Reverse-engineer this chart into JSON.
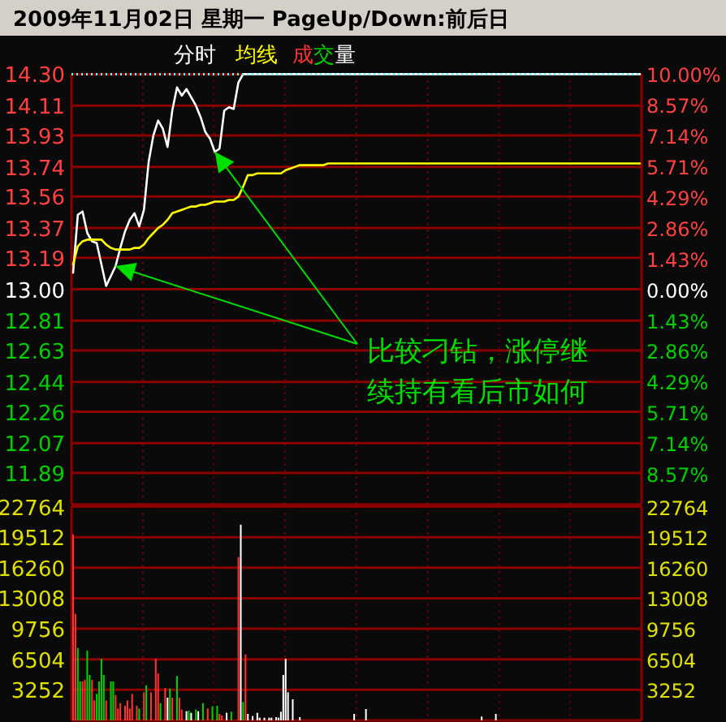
{
  "chart_data": [
    {
      "type": "line",
      "title": "2009年11月02日 星期一 PageUp/Down:前后日",
      "categories": [
        null,
        null,
        null,
        null,
        null,
        null,
        null,
        null,
        null,
        null,
        null,
        null,
        null,
        null,
        null,
        null,
        null,
        null,
        null,
        null,
        null,
        null,
        null,
        null,
        null,
        null,
        null,
        null,
        null,
        null,
        null,
        null,
        null,
        null,
        null,
        null,
        null,
        null,
        null,
        null,
        null,
        null,
        null,
        null,
        null,
        null,
        null,
        null,
        null,
        null,
        null,
        null,
        null,
        null,
        null,
        null,
        null,
        null,
        null,
        null,
        null,
        null,
        null,
        null,
        null,
        null,
        null,
        null,
        null,
        null,
        null,
        null,
        null,
        null,
        null,
        null,
        null,
        null,
        null,
        null,
        null,
        null,
        null,
        null,
        null,
        null,
        null,
        null,
        null,
        null,
        null,
        null,
        null,
        null,
        null,
        null,
        null,
        null,
        null,
        null,
        null,
        null,
        null,
        null,
        null,
        null,
        null,
        null,
        null,
        null,
        null,
        null,
        null,
        null,
        null,
        null,
        null,
        null,
        null,
        null,
        null
      ],
      "series": [
        {
          "name": "分时",
          "color": "#ffffff",
          "values": [
            13.1,
            13.45,
            13.47,
            13.34,
            13.29,
            13.28,
            13.15,
            13.02,
            13.08,
            13.14,
            13.25,
            13.35,
            13.42,
            13.46,
            13.38,
            13.48,
            13.77,
            13.93,
            14.02,
            13.97,
            13.86,
            14.08,
            14.22,
            14.17,
            14.21,
            14.16,
            14.11,
            14.04,
            13.95,
            13.91,
            13.83,
            13.85,
            14.08,
            14.1,
            14.09,
            14.25,
            14.3,
            14.3,
            14.3,
            14.3,
            14.3,
            14.3,
            14.3,
            14.3,
            14.3,
            14.3,
            14.3,
            14.3,
            14.3,
            14.3,
            14.3,
            14.3,
            14.3,
            14.3,
            14.3,
            14.3,
            14.3,
            14.3,
            14.3,
            14.3,
            14.3,
            14.3,
            14.3,
            14.3,
            14.3,
            14.3,
            14.3,
            14.3,
            14.3,
            14.3,
            14.3,
            14.3,
            14.3,
            14.3,
            14.3,
            14.3,
            14.3,
            14.3,
            14.3,
            14.3,
            14.3,
            14.3,
            14.3,
            14.3,
            14.3,
            14.3,
            14.3,
            14.3,
            14.3,
            14.3,
            14.3,
            14.3,
            14.3,
            14.3,
            14.3,
            14.3,
            14.3,
            14.3,
            14.3,
            14.3,
            14.3,
            14.3,
            14.3,
            14.3,
            14.3,
            14.3,
            14.3,
            14.3,
            14.3,
            14.3,
            14.3,
            14.3,
            14.3,
            14.3,
            14.3,
            14.3,
            14.3,
            14.3,
            14.3,
            14.3,
            14.3
          ]
        },
        {
          "name": "均线",
          "color": "#ffff00",
          "values": [
            13.15,
            13.26,
            13.29,
            13.3,
            13.3,
            13.3,
            13.3,
            13.27,
            13.25,
            13.24,
            13.24,
            13.24,
            13.24,
            13.25,
            13.25,
            13.27,
            13.31,
            13.34,
            13.37,
            13.39,
            13.42,
            13.46,
            13.47,
            13.48,
            13.49,
            13.5,
            13.5,
            13.51,
            13.51,
            13.52,
            13.53,
            13.53,
            13.53,
            13.54,
            13.54,
            13.56,
            13.62,
            13.69,
            13.69,
            13.7,
            13.7,
            13.7,
            13.7,
            13.7,
            13.7,
            13.72,
            13.73,
            13.74,
            13.75,
            13.75,
            13.75,
            13.75,
            13.75,
            13.75,
            13.76,
            13.76,
            13.76,
            13.76,
            13.76,
            13.76,
            13.76,
            13.76,
            13.76,
            13.76,
            13.76,
            13.76,
            13.76,
            13.76,
            13.76,
            13.76,
            13.76,
            13.76,
            13.76,
            13.76,
            13.76,
            13.76,
            13.76,
            13.76,
            13.76,
            13.76,
            13.76,
            13.76,
            13.76,
            13.76,
            13.76,
            13.76,
            13.76,
            13.76,
            13.76,
            13.76,
            13.76,
            13.76,
            13.76,
            13.76,
            13.76,
            13.76,
            13.76,
            13.76,
            13.76,
            13.76,
            13.76,
            13.76,
            13.76,
            13.76,
            13.76,
            13.76,
            13.76,
            13.76,
            13.76,
            13.76,
            13.76,
            13.76,
            13.76,
            13.76,
            13.76,
            13.76,
            13.76,
            13.76,
            13.76,
            13.76,
            13.76
          ]
        }
      ],
      "ylim": [
        11.7,
        14.3
      ],
      "yticks": [
        {
          "value": 14.3,
          "label": "14.30"
        },
        14.11,
        13.93,
        13.74,
        13.56,
        13.37,
        13.19,
        {
          "value": 13,
          "label": "13.00"
        },
        12.81,
        12.63,
        12.44,
        12.26,
        12.07,
        11.89
      ],
      "y2lim": [
        -10,
        10
      ],
      "y2ticks": [
        {
          "value": 10,
          "label": "10.00%"
        },
        {
          "value": 8.57,
          "label": "8.57%"
        },
        {
          "value": 7.14,
          "label": "7.14%"
        },
        {
          "value": 5.71,
          "label": "5.71%"
        },
        {
          "value": 4.29,
          "label": "4.29%"
        },
        {
          "value": 2.86,
          "label": "2.86%"
        },
        {
          "value": 1.43,
          "label": "1.43%"
        },
        {
          "value": 0,
          "label": "0.00%"
        },
        {
          "value": -1.43,
          "label": "1.43%"
        },
        {
          "value": -2.86,
          "label": "2.86%"
        },
        {
          "value": -4.29,
          "label": "4.29%"
        },
        {
          "value": -5.71,
          "label": "5.71%"
        },
        {
          "value": -7.14,
          "label": "7.14%"
        },
        {
          "value": -8.57,
          "label": "8.57%"
        }
      ],
      "ref_lines": [
        {
          "axis": "y",
          "value": 14.3,
          "color": "#55ffff",
          "line_style": "dotted"
        }
      ],
      "annotations": [
        "比较刁钻，涨停继续持有看后市如何"
      ],
      "grid": true,
      "tick_labels": "y"
    },
    {
      "type": "bar",
      "categories": [
        null,
        null,
        null,
        null,
        null,
        null,
        null,
        null,
        null,
        null,
        null,
        null,
        null,
        null,
        null,
        null,
        null,
        null,
        null,
        null,
        null,
        null,
        null,
        null,
        null,
        null,
        null,
        null,
        null,
        null,
        null,
        null,
        null,
        null,
        null,
        null,
        null,
        null,
        null,
        null,
        null,
        null,
        null,
        null,
        null,
        null,
        null,
        null,
        null,
        null,
        null,
        null,
        null,
        null,
        null,
        null,
        null,
        null,
        null,
        null,
        null,
        null,
        null,
        null,
        null,
        null,
        null,
        null,
        null,
        null,
        null,
        null,
        null,
        null,
        null,
        null,
        null,
        null,
        null,
        null,
        null,
        null,
        null,
        null,
        null,
        null,
        null,
        null,
        null,
        null,
        null,
        null,
        null,
        null,
        null,
        null,
        null,
        null,
        null,
        null,
        null,
        null,
        null,
        null,
        null,
        null,
        null,
        null,
        null,
        null,
        null,
        null,
        null,
        null,
        null,
        null,
        null,
        null,
        null,
        null,
        null,
        null,
        null,
        null,
        null,
        null,
        null,
        null,
        null,
        null,
        null,
        null,
        null,
        null,
        null,
        null,
        null,
        null,
        null,
        null,
        null,
        null,
        null,
        null,
        null,
        null,
        null,
        null,
        null,
        null,
        null,
        null,
        null,
        null,
        null,
        null,
        null,
        null,
        null,
        null,
        null,
        null,
        null,
        null,
        null,
        null,
        null,
        null,
        null,
        null,
        null,
        null,
        null,
        null,
        null,
        null,
        null,
        null,
        null,
        null,
        null,
        null,
        null,
        null,
        null,
        null,
        null,
        null,
        null,
        null,
        null,
        null,
        null,
        null,
        null,
        null,
        null,
        null,
        null,
        null,
        null,
        null,
        null,
        null,
        null,
        null,
        null,
        null,
        null,
        null,
        null,
        null,
        null,
        null,
        null,
        null,
        null,
        null,
        null,
        null,
        null,
        null,
        null,
        null,
        null,
        null,
        null,
        null,
        null,
        null,
        null,
        null,
        null,
        null,
        null,
        null,
        null,
        null,
        null,
        null,
        null
      ],
      "series": [
        {
          "name": "成交量",
          "values": [
            19814,
            11347,
            7718,
            4147,
            4147,
            4320,
            7430,
            4838,
            4320,
            2131,
            2822,
            4147,
            6566,
            4838,
            2131,
            null,
            4147,
            4147,
            2707,
            1267,
            1843,
            null,
            1555,
            2131,
            1267,
            2822,
            null,
            1555,
            1267,
            null,
            2995,
            3744,
            null,
            2995,
            null,
            6566,
            5011,
            1843,
            null,
            3456,
            2419,
            3398,
            2419,
            null,
            4723,
            2419,
            1152,
            null,
            979,
            1037,
            806,
            null,
            1152,
            979,
            null,
            1843,
            null,
            1267,
            null,
            1498,
            null,
            1555,
            691,
            518,
            null,
            806,
            null,
            922,
            null,
            null,
            17395,
            20851,
            1958,
            7027,
            691,
            null,
            461,
            null,
            806,
            288,
            null,
            288,
            null,
            288,
            288,
            null,
            346,
            288,
            922,
            4838,
            6566,
            2995,
            null,
            2246,
            null,
            null,
            346,
            null,
            null,
            null,
            null,
            null,
            null,
            null,
            null,
            null,
            null,
            null,
            null,
            null,
            null,
            null,
            null,
            null,
            null,
            null,
            null,
            null,
            null,
            691,
            null,
            null,
            null,
            null,
            1210,
            null,
            null,
            null,
            null,
            null,
            null,
            null,
            null,
            null,
            null,
            null,
            null,
            null,
            null,
            null,
            null,
            null,
            null,
            null,
            null,
            null,
            null,
            null,
            null,
            null,
            null,
            null,
            null,
            null,
            null,
            null,
            null,
            null,
            null,
            null,
            null,
            null,
            null,
            null,
            null,
            null,
            null,
            null,
            null,
            null,
            null,
            null,
            null,
            403,
            null,
            null,
            null,
            null,
            null,
            691,
            null,
            null,
            null,
            null,
            null,
            null,
            null,
            null,
            null,
            null,
            null,
            null,
            null,
            null,
            null,
            null,
            null,
            null,
            null,
            null,
            null,
            null,
            null,
            null,
            null,
            null,
            null,
            null,
            null,
            null,
            null,
            null,
            null,
            null,
            null,
            null,
            null,
            null,
            null,
            null,
            null,
            null,
            null,
            null,
            null,
            null,
            null,
            null,
            null,
            null,
            null,
            null,
            null,
            null,
            null,
            null,
            null,
            null,
            null,
            null,
            null
          ],
          "colors": [
            "#ff3232",
            "#ff3232",
            "#00d000",
            "#00d000",
            "#ff3232",
            "#ff3232",
            "#00d000",
            "#00d000",
            "#ff3232",
            "#ff3232",
            "#00d000",
            "#00d000",
            "#00d000",
            "#00d000",
            "#ff3232",
            null,
            "#00d000",
            "#00d000",
            "#ff3232",
            "#ff3232",
            "#ff3232",
            null,
            "#ff3232",
            "#ff3232",
            "#ff3232",
            "#ff3232",
            null,
            "#ff3232",
            "#00d000",
            null,
            "#ff3232",
            "#00d000",
            null,
            "#ff3232",
            null,
            "#ff3232",
            "#ff3232",
            "#00d000",
            null,
            "#ff3232",
            "#ffffff",
            "#00d000",
            "#ff3232",
            null,
            "#00d000",
            "#ff3232",
            "#ff3232",
            null,
            "#ffffff",
            "#00d000",
            "#ffffff",
            null,
            "#00d000",
            "#ffffff",
            null,
            "#00d000",
            null,
            "#ff3232",
            null,
            "#00d000",
            null,
            "#00d000",
            "#ff3232",
            "#ff3232",
            null,
            "#ffffff",
            null,
            "#00d000",
            null,
            null,
            "#ff3232",
            "#ffffff",
            "#00d000",
            "#ff3232",
            "#ffffff",
            null,
            "#ffffff",
            null,
            "#ffffff",
            "#ffffff",
            null,
            "#ffffff",
            null,
            "#ffffff",
            "#ffffff",
            null,
            "#ffffff",
            "#ffffff",
            "#ffffff",
            "#ffffff",
            "#ffffff",
            "#ffffff",
            null,
            "#ffffff",
            null,
            null,
            "#ffffff",
            null,
            null,
            null,
            null,
            null,
            null,
            null,
            null,
            null,
            null,
            null,
            null,
            null,
            null,
            null,
            null,
            null,
            null,
            null,
            null,
            null,
            null,
            "#ffffff",
            null,
            null,
            null,
            null,
            "#ffffff",
            null,
            null,
            null,
            null,
            null,
            null,
            null,
            null,
            null,
            null,
            null,
            null,
            null,
            null,
            null,
            null,
            null,
            null,
            null,
            null,
            null,
            null,
            null,
            null,
            null,
            null,
            null,
            null,
            null,
            null,
            null,
            null,
            null,
            null,
            null,
            null,
            null,
            null,
            null,
            null,
            null,
            null,
            null,
            null,
            null,
            null,
            null,
            null,
            "#ffffff",
            null,
            null,
            null,
            null,
            null,
            "#ffffff",
            null,
            null,
            null,
            null,
            null,
            null,
            null,
            null,
            null,
            null,
            null,
            null,
            null,
            null,
            null,
            null,
            null,
            null,
            null,
            null,
            null,
            null,
            null,
            null,
            null,
            null,
            null,
            null,
            null,
            null,
            null,
            null,
            null,
            null,
            null,
            null,
            null,
            null,
            null,
            null,
            null,
            null,
            null,
            null,
            null,
            null,
            null,
            null,
            null,
            null,
            null,
            null,
            null,
            null,
            null,
            null,
            null,
            null,
            null,
            null,
            null
          ]
        }
      ],
      "ylim": [
        0,
        22764
      ],
      "yticks": [
        3252,
        6504,
        9756,
        13008,
        16260,
        19512,
        22764
      ],
      "y2lim": [
        0,
        22764
      ],
      "y2ticks": [
        3252,
        6504,
        9756,
        13008,
        16260,
        19512,
        22764
      ],
      "grid": true,
      "tick_labels": "y"
    }
  ]
}
